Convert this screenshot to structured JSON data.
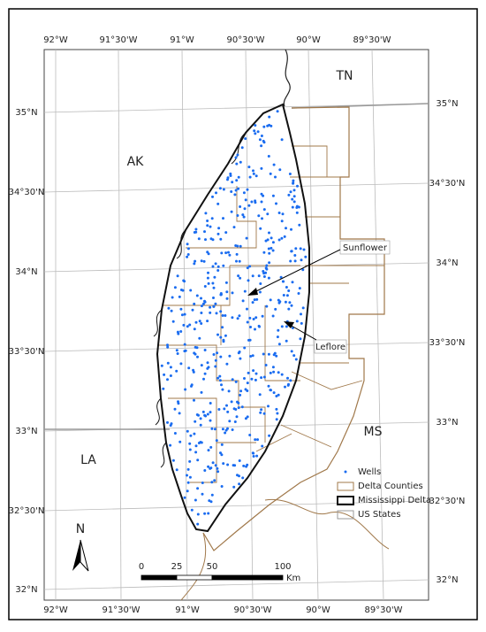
{
  "map": {
    "lon_labels_top": [
      "92°W",
      "91°30'W",
      "91°W",
      "90°30'W",
      "90°W",
      "89°30'W"
    ],
    "lon_labels_bottom": [
      "92°W",
      "91°30'W",
      "91°W",
      "90°30'W",
      "90°W",
      "89°30'W"
    ],
    "lat_labels_left": [
      "35°N",
      "34°30'N",
      "34°N",
      "33°30'N",
      "33°N",
      "32°30'N",
      "32°N"
    ],
    "lat_labels_right": [
      "35°N",
      "34°30'N",
      "34°N",
      "33°30'N",
      "33°N",
      "32°30'N",
      "32°N"
    ],
    "state_labels": [
      "TN",
      "AK",
      "LA",
      "MS"
    ],
    "annotations": [
      "Sunflower",
      "Leflore"
    ],
    "legend": [
      "Wells",
      "Delta Counties",
      "Mississippi Delta",
      "US States"
    ],
    "north_label": "N",
    "scale_bar": {
      "ticks": [
        0,
        25,
        50,
        100
      ],
      "unit": "Km"
    }
  }
}
